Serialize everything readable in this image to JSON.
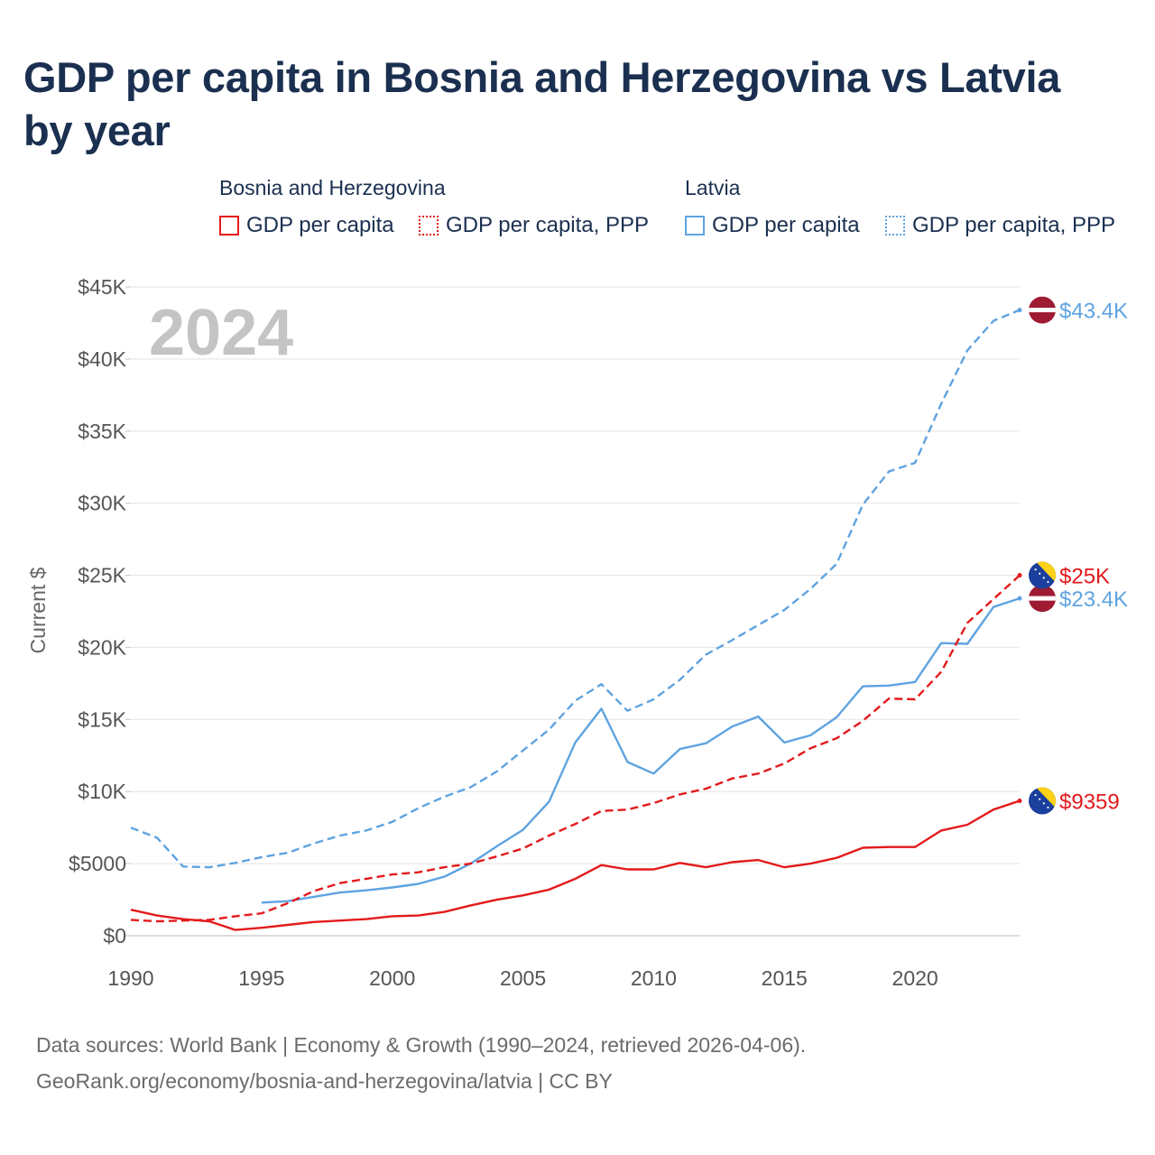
{
  "title": "GDP per capita in Bosnia and Herzegovina vs Latvia by year",
  "legend": {
    "groups": [
      {
        "label": "Bosnia and Herzegovina",
        "items": [
          "GDP per capita",
          "GDP per capita, PPP"
        ],
        "color": "#e31a1c"
      },
      {
        "label": "Latvia",
        "items": [
          "GDP per capita",
          "GDP per capita, PPP"
        ],
        "color": "#5fa3e0"
      }
    ]
  },
  "year_watermark": "2024",
  "footer": {
    "line1": "Data sources: World Bank | Economy & Growth (1990–2024, retrieved 2026-04-06).",
    "line2": "GeoRank.org/economy/bosnia-and-herzegovina/latvia | CC BY"
  },
  "chart_data": {
    "type": "line",
    "title": "GDP per capita in Bosnia and Herzegovina vs Latvia by year",
    "xlabel": "",
    "ylabel": "Current $",
    "xlim": [
      1990,
      2024
    ],
    "ylim": [
      0,
      45000
    ],
    "x_ticks": [
      1990,
      1995,
      2000,
      2005,
      2010,
      2015,
      2020
    ],
    "x_tick_labels": [
      "1990",
      "1995",
      "2000",
      "2005",
      "2010",
      "2015",
      "2020"
    ],
    "y_ticks": [
      0,
      5000,
      10000,
      15000,
      20000,
      25000,
      30000,
      35000,
      40000,
      45000
    ],
    "y_tick_labels": [
      "$0",
      "$5000",
      "$10K",
      "$15K",
      "$20K",
      "$25K",
      "$30K",
      "$35K",
      "$40K",
      "$45K"
    ],
    "grid": true,
    "series": [
      {
        "name": "Latvia GDP per capita, PPP",
        "country": "Latvia",
        "color": "#5fa3e0",
        "dashed": true,
        "end_label": "$43.4K",
        "x": [
          1990,
          1991,
          1992,
          1993,
          1994,
          1995,
          1996,
          1997,
          1998,
          1999,
          2000,
          2001,
          2002,
          2003,
          2004,
          2005,
          2006,
          2007,
          2008,
          2009,
          2010,
          2011,
          2012,
          2013,
          2014,
          2015,
          2016,
          2017,
          2018,
          2019,
          2020,
          2021,
          2022,
          2023,
          2024
        ],
        "values": [
          7500,
          6800,
          4800,
          4750,
          5050,
          5450,
          5750,
          6400,
          6950,
          7300,
          7900,
          8850,
          9650,
          10300,
          11400,
          12850,
          14300,
          16300,
          17450,
          15600,
          16400,
          17750,
          19500,
          20500,
          21550,
          22600,
          24050,
          25800,
          29900,
          32200,
          32800,
          36900,
          40600,
          42650,
          43400
        ]
      },
      {
        "name": "Latvia GDP per capita",
        "country": "Latvia",
        "color": "#5fa3e0",
        "dashed": false,
        "end_label": "$23.4K",
        "x": [
          1995,
          1996,
          1997,
          1998,
          1999,
          2000,
          2001,
          2002,
          2003,
          2004,
          2005,
          2006,
          2007,
          2008,
          2009,
          2010,
          2011,
          2012,
          2013,
          2014,
          2015,
          2016,
          2017,
          2018,
          2019,
          2020,
          2021,
          2022,
          2023,
          2024
        ],
        "values": [
          2300,
          2400,
          2700,
          3000,
          3150,
          3350,
          3600,
          4100,
          5000,
          6200,
          7350,
          9300,
          13400,
          15750,
          12050,
          11250,
          12950,
          13350,
          14500,
          15200,
          13400,
          13900,
          15150,
          17300,
          17350,
          17600,
          20300,
          20250,
          22800,
          23400
        ]
      },
      {
        "name": "Bosnia and Herzegovina GDP per capita, PPP",
        "country": "Bosnia and Herzegovina",
        "color": "#e31a1c",
        "dashed": true,
        "end_label": "$25K",
        "x": [
          1990,
          1991,
          1992,
          1993,
          1994,
          1995,
          1996,
          1997,
          1998,
          1999,
          2000,
          2001,
          2002,
          2003,
          2004,
          2005,
          2006,
          2007,
          2008,
          2009,
          2010,
          2011,
          2012,
          2013,
          2014,
          2015,
          2016,
          2017,
          2018,
          2019,
          2020,
          2021,
          2022,
          2023,
          2024
        ],
        "values": [
          1100,
          1000,
          1050,
          1100,
          1350,
          1550,
          2250,
          3100,
          3650,
          3950,
          4250,
          4400,
          4750,
          5000,
          5500,
          6050,
          6950,
          7750,
          8650,
          8750,
          9200,
          9800,
          10200,
          10900,
          11250,
          11950,
          13000,
          13700,
          14900,
          16450,
          16400,
          18300,
          21700,
          23350,
          25000
        ]
      },
      {
        "name": "Bosnia and Herzegovina GDP per capita",
        "country": "Bosnia and Herzegovina",
        "color": "#e31a1c",
        "dashed": false,
        "end_label": "$9359",
        "x": [
          1990,
          1991,
          1992,
          1993,
          1994,
          1995,
          1996,
          1997,
          1998,
          1999,
          2000,
          2001,
          2002,
          2003,
          2004,
          2005,
          2006,
          2007,
          2008,
          2009,
          2010,
          2011,
          2012,
          2013,
          2014,
          2015,
          2016,
          2017,
          2018,
          2019,
          2020,
          2021,
          2022,
          2023,
          2024
        ],
        "values": [
          1800,
          1400,
          1150,
          1000,
          400,
          550,
          750,
          950,
          1050,
          1150,
          1350,
          1400,
          1650,
          2100,
          2500,
          2800,
          3200,
          3950,
          4900,
          4600,
          4600,
          5050,
          4750,
          5100,
          5250,
          4750,
          5000,
          5400,
          6100,
          6150,
          6150,
          7300,
          7700,
          8750,
          9359
        ]
      }
    ]
  }
}
